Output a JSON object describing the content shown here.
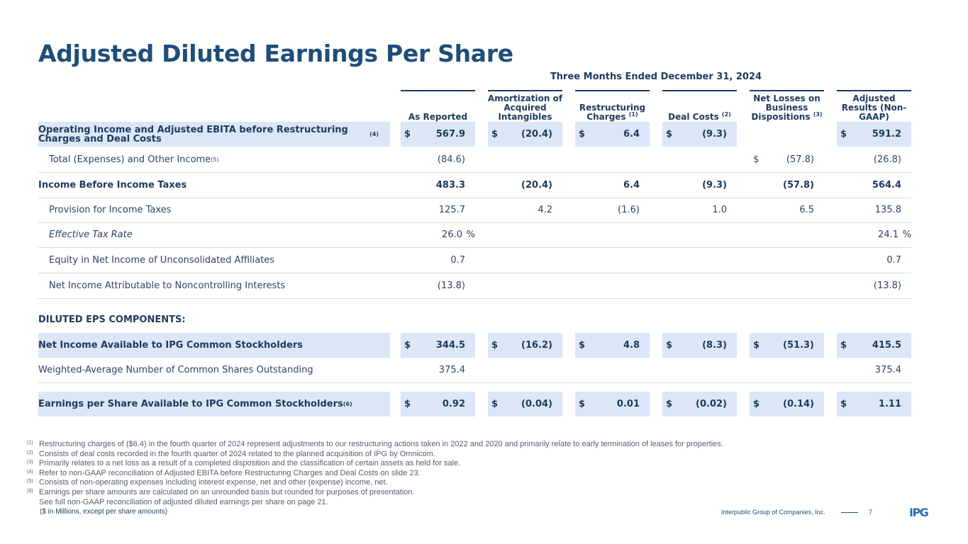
{
  "title": "Adjusted Diluted Earnings Per Share",
  "period": "Three Months Ended December 31, 2024",
  "columns": [
    {
      "label": "As Reported",
      "sup": ""
    },
    {
      "label": "Amortization of Acquired Intangibles",
      "sup": ""
    },
    {
      "label": "Restructuring Charges",
      "sup": "(1)"
    },
    {
      "label": "Deal Costs",
      "sup": "(2)"
    },
    {
      "label": "Net Losses on Business Dispositions",
      "sup": "(3)"
    },
    {
      "label": "Adjusted Results (Non-GAAP)",
      "sup": ""
    }
  ],
  "rows": [
    {
      "label": "Operating Income and Adjusted EBITA before Restructuring Charges and Deal Costs",
      "sup": "(4)",
      "style": "bold",
      "shaded": true,
      "cells": [
        {
          "d": "$",
          "v": "567.9"
        },
        {
          "d": "$",
          "v": "(20.4)"
        },
        {
          "d": "$",
          "v": "6.4"
        },
        {
          "d": "$",
          "v": "(9.3)"
        },
        {
          "d": "",
          "v": ""
        },
        {
          "d": "$",
          "v": "591.2"
        }
      ]
    },
    {
      "label": "Total (Expenses) and Other Income",
      "sup": "(5)",
      "style": "indent",
      "cells": [
        {
          "d": "",
          "v": "(84.6)"
        },
        {
          "d": "",
          "v": ""
        },
        {
          "d": "",
          "v": ""
        },
        {
          "d": "",
          "v": ""
        },
        {
          "d": "$",
          "v": "(57.8)"
        },
        {
          "d": "",
          "v": "(26.8)"
        }
      ]
    },
    {
      "label": "Income Before Income Taxes",
      "sup": "",
      "style": "bold",
      "cells": [
        {
          "d": "",
          "v": "483.3"
        },
        {
          "d": "",
          "v": "(20.4)"
        },
        {
          "d": "",
          "v": "6.4"
        },
        {
          "d": "",
          "v": "(9.3)"
        },
        {
          "d": "",
          "v": "(57.8)"
        },
        {
          "d": "",
          "v": "564.4"
        }
      ]
    },
    {
      "label": "Provision for Income Taxes",
      "sup": "",
      "style": "indent",
      "cells": [
        {
          "d": "",
          "v": "125.7"
        },
        {
          "d": "",
          "v": "4.2"
        },
        {
          "d": "",
          "v": "(1.6)"
        },
        {
          "d": "",
          "v": "1.0"
        },
        {
          "d": "",
          "v": "6.5"
        },
        {
          "d": "",
          "v": "135.8"
        }
      ]
    },
    {
      "label": "Effective Tax Rate",
      "sup": "",
      "style": "indent italic",
      "cells": [
        {
          "d": "",
          "v": "26.0",
          "pct": "%"
        },
        {
          "d": "",
          "v": ""
        },
        {
          "d": "",
          "v": ""
        },
        {
          "d": "",
          "v": ""
        },
        {
          "d": "",
          "v": ""
        },
        {
          "d": "",
          "v": "24.1",
          "pct": "%"
        }
      ]
    },
    {
      "label": "Equity in Net Income of Unconsolidated Affiliates",
      "sup": "",
      "style": "indent",
      "cells": [
        {
          "d": "",
          "v": "0.7"
        },
        {
          "d": "",
          "v": ""
        },
        {
          "d": "",
          "v": ""
        },
        {
          "d": "",
          "v": ""
        },
        {
          "d": "",
          "v": ""
        },
        {
          "d": "",
          "v": "0.7"
        }
      ]
    },
    {
      "label": "Net Income Attributable to Noncontrolling Interests",
      "sup": "",
      "style": "indent",
      "cells": [
        {
          "d": "",
          "v": "(13.8)"
        },
        {
          "d": "",
          "v": ""
        },
        {
          "d": "",
          "v": ""
        },
        {
          "d": "",
          "v": ""
        },
        {
          "d": "",
          "v": ""
        },
        {
          "d": "",
          "v": "(13.8)"
        }
      ]
    }
  ],
  "eps_header": "DILUTED EPS COMPONENTS:",
  "eps_rows": [
    {
      "label": "Net Income Available to IPG Common Stockholders",
      "sup": "",
      "style": "bold",
      "shaded": true,
      "cells": [
        {
          "d": "$",
          "v": "344.5"
        },
        {
          "d": "$",
          "v": "(16.2)"
        },
        {
          "d": "$",
          "v": "4.8"
        },
        {
          "d": "$",
          "v": "(8.3)"
        },
        {
          "d": "$",
          "v": "(51.3)"
        },
        {
          "d": "$",
          "v": "415.5"
        }
      ]
    },
    {
      "label": "Weighted-Average Number of Common Shares Outstanding",
      "sup": "",
      "style": "",
      "cells": [
        {
          "d": "",
          "v": "375.4"
        },
        {
          "d": "",
          "v": ""
        },
        {
          "d": "",
          "v": ""
        },
        {
          "d": "",
          "v": ""
        },
        {
          "d": "",
          "v": ""
        },
        {
          "d": "",
          "v": "375.4"
        }
      ]
    },
    {
      "label": "Earnings per Share Available to IPG Common Stockholders",
      "sup": "(6)",
      "style": "bold",
      "shaded": true,
      "cells": [
        {
          "d": "$",
          "v": "0.92"
        },
        {
          "d": "$",
          "v": "(0.04)"
        },
        {
          "d": "$",
          "v": "0.01"
        },
        {
          "d": "$",
          "v": "(0.02)"
        },
        {
          "d": "$",
          "v": "(0.14)"
        },
        {
          "d": "$",
          "v": "1.11"
        }
      ]
    }
  ],
  "footnotes": [
    {
      "mark": "(1)",
      "text": "Restructuring charges of ($6.4) in the fourth quarter of 2024 represent adjustments to our restructuring actions taken in 2022 and 2020 and primarily relate to early termination of leases for properties."
    },
    {
      "mark": "(2)",
      "text": "Consists of deal costs recorded in the fourth quarter of 2024 related to the planned acquisition of IPG by Omnicom."
    },
    {
      "mark": "(3)",
      "text": "Primarily relates to a net loss as a result of a completed disposition and the classification of certain assets as held for sale."
    },
    {
      "mark": "(4)",
      "text": "Refer to non-GAAP reconciliation of Adjusted EBITA before Restructuring Charges and Deal Costs on slide 23."
    },
    {
      "mark": "(5)",
      "text": "Consists of non-operating expenses including interest expense, net and other (expense) income, net."
    },
    {
      "mark": "(6)",
      "text": "Earnings per share amounts are calculated on an unrounded basis but rounded for purposes of presentation."
    },
    {
      "mark": "",
      "text": "See full non-GAAP reconciliation of adjusted diluted earnings per share on page 21."
    }
  ],
  "units_note": "($ in Millions, except per share amounts)",
  "company": "Interpublic Group of Companies, Inc.",
  "page_number": "7",
  "logo_text": "IPG",
  "colors": {
    "title": "#1f4e79",
    "shade": "#dbe7f7",
    "text": "#1f3a5c"
  }
}
